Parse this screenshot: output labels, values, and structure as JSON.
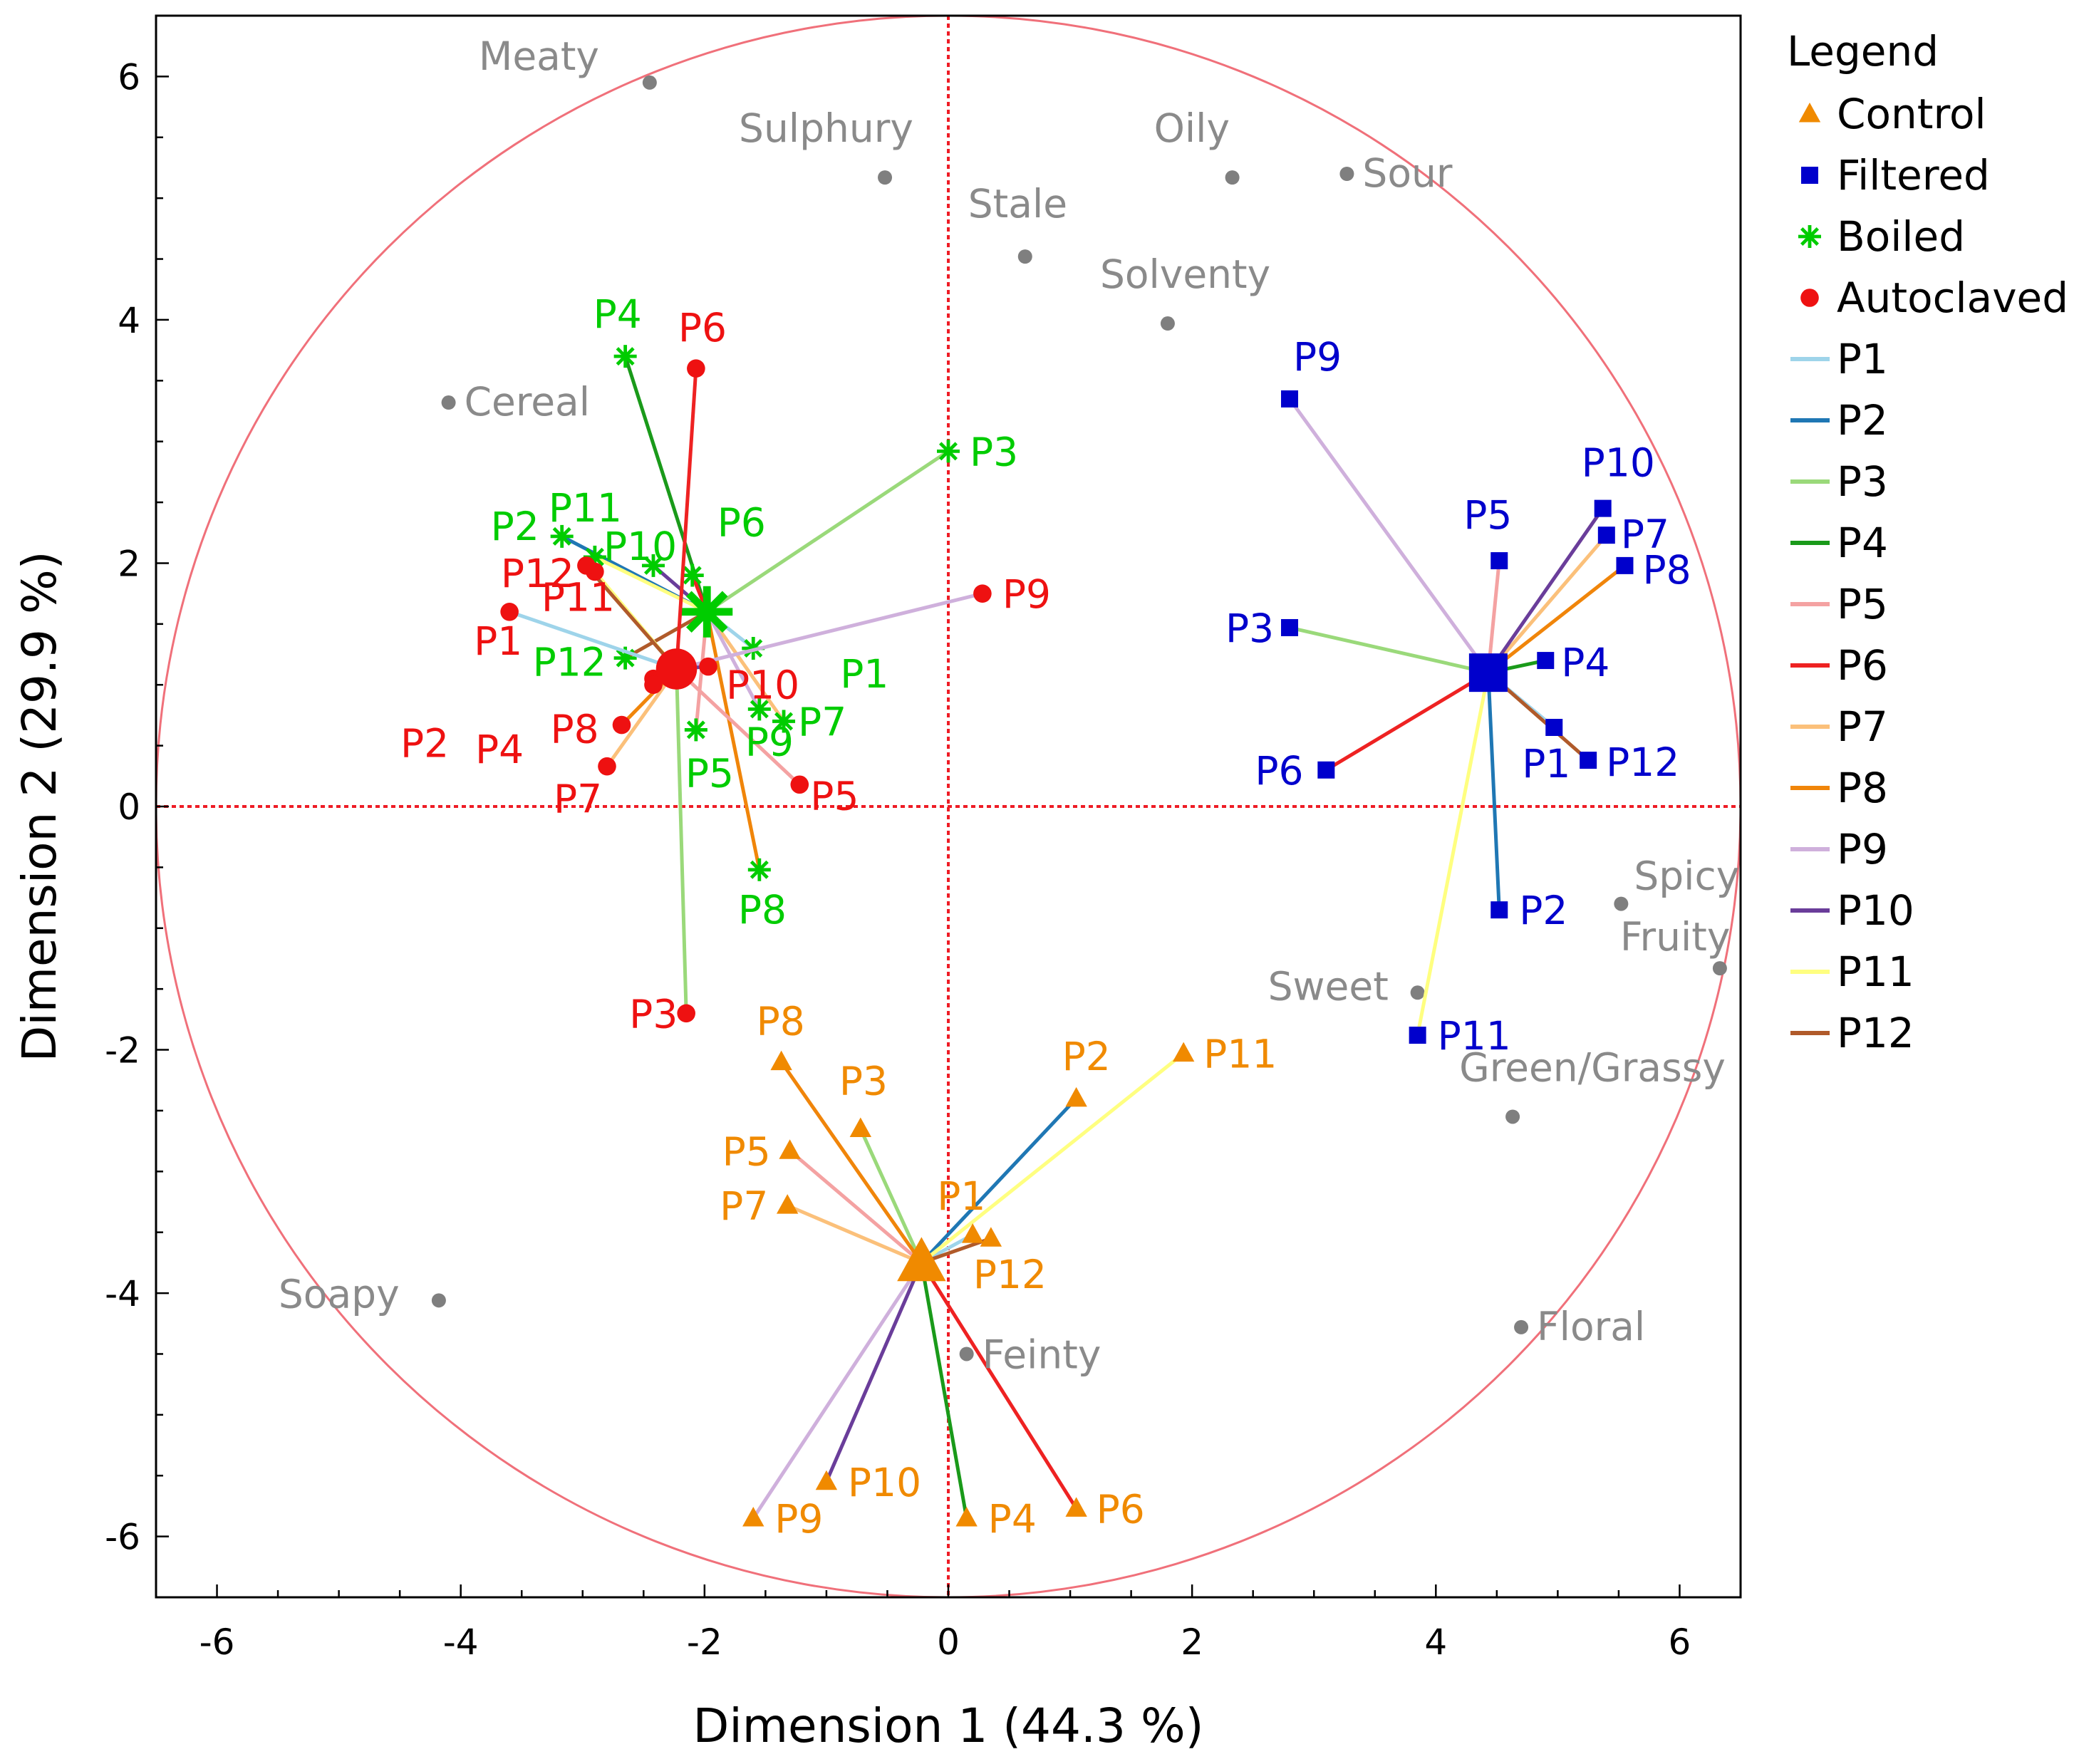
{
  "chart_data": {
    "type": "scatter",
    "xlabel": "Dimension 1  (44.3 %)",
    "ylabel": "Dimension 2  (29.9 %)",
    "xlim": [
      -6.5,
      6.5
    ],
    "ylim": [
      -6.5,
      6.5
    ],
    "xticks": [
      -6,
      -4,
      -2,
      0,
      2,
      4,
      6
    ],
    "yticks": [
      -6,
      -4,
      -2,
      0,
      2,
      4,
      6
    ],
    "reference_lines": {
      "x": 0,
      "y": 0,
      "color": "#ee1c25"
    },
    "circle": {
      "radius": 6.5,
      "color": "#f0707a"
    },
    "legend": {
      "title": "Legend",
      "placement": "right",
      "groups": [
        {
          "label": "Control",
          "marker": "triangle",
          "color": "#f08a00"
        },
        {
          "label": "Filtered",
          "marker": "square",
          "color": "#0000cc"
        },
        {
          "label": "Boiled",
          "marker": "asterisk",
          "color": "#00cc00"
        },
        {
          "label": "Autoclaved",
          "marker": "circle",
          "color": "#ee1111"
        }
      ],
      "panelists": [
        {
          "label": "P1",
          "color": "#9ed4ea"
        },
        {
          "label": "P2",
          "color": "#1f77b4"
        },
        {
          "label": "P3",
          "color": "#9ad97a"
        },
        {
          "label": "P4",
          "color": "#1a9a1a"
        },
        {
          "label": "P5",
          "color": "#f4a2a2"
        },
        {
          "label": "P6",
          "color": "#ee2222"
        },
        {
          "label": "P7",
          "color": "#fbc07a"
        },
        {
          "label": "P8",
          "color": "#f0850a"
        },
        {
          "label": "P9",
          "color": "#cfb0dc"
        },
        {
          "label": "P10",
          "color": "#6a3d9a"
        },
        {
          "label": "P11",
          "color": "#ffff80"
        },
        {
          "label": "P12",
          "color": "#b05a2a"
        }
      ]
    },
    "attributes": [
      {
        "label": "Meaty",
        "x": -2.45,
        "y": 5.95
      },
      {
        "label": "Sulphury",
        "x": -0.52,
        "y": 5.17
      },
      {
        "label": "Stale",
        "x": 0.63,
        "y": 4.52
      },
      {
        "label": "Oily",
        "x": 2.33,
        "y": 5.17
      },
      {
        "label": "Sour",
        "x": 3.27,
        "y": 5.2
      },
      {
        "label": "Solventy",
        "x": 1.8,
        "y": 3.97
      },
      {
        "label": "Cereal",
        "x": -4.1,
        "y": 3.32
      },
      {
        "label": "Spicy",
        "x": 5.52,
        "y": -0.8
      },
      {
        "label": "Fruity",
        "x": 6.33,
        "y": -1.33
      },
      {
        "label": "Sweet",
        "x": 3.85,
        "y": -1.53
      },
      {
        "label": "Green/Grassy",
        "x": 4.63,
        "y": -2.55
      },
      {
        "label": "Soapy",
        "x": -4.18,
        "y": -4.06
      },
      {
        "label": "Floral",
        "x": 4.7,
        "y": -4.28
      },
      {
        "label": "Feinty",
        "x": 0.15,
        "y": -4.5
      }
    ],
    "groups": [
      {
        "name": "Control",
        "center": {
          "x": -0.22,
          "y": -3.75
        },
        "points": [
          {
            "label": "P1",
            "x": 0.2,
            "y": -3.52
          },
          {
            "label": "P2",
            "x": 1.05,
            "y": -2.4
          },
          {
            "label": "P3",
            "x": -0.72,
            "y": -2.65
          },
          {
            "label": "P4",
            "x": 0.15,
            "y": -5.85
          },
          {
            "label": "P5",
            "x": -1.3,
            "y": -2.83
          },
          {
            "label": "P6",
            "x": 1.05,
            "y": -5.77
          },
          {
            "label": "P7",
            "x": -1.32,
            "y": -3.28
          },
          {
            "label": "P8",
            "x": -1.37,
            "y": -2.1
          },
          {
            "label": "P9",
            "x": -1.6,
            "y": -5.85
          },
          {
            "label": "P10",
            "x": -1.0,
            "y": -5.55
          },
          {
            "label": "P11",
            "x": 1.93,
            "y": -2.03
          },
          {
            "label": "P12",
            "x": 0.35,
            "y": -3.55
          }
        ]
      },
      {
        "name": "Filtered",
        "center": {
          "x": 4.43,
          "y": 1.1
        },
        "points": [
          {
            "label": "P1",
            "x": 4.97,
            "y": 0.65
          },
          {
            "label": "P2",
            "x": 4.52,
            "y": -0.85
          },
          {
            "label": "P3",
            "x": 2.8,
            "y": 1.47
          },
          {
            "label": "P4",
            "x": 4.9,
            "y": 1.2
          },
          {
            "label": "P5",
            "x": 4.52,
            "y": 2.02
          },
          {
            "label": "P6",
            "x": 3.1,
            "y": 0.3
          },
          {
            "label": "P7",
            "x": 5.4,
            "y": 2.23
          },
          {
            "label": "P8",
            "x": 5.55,
            "y": 1.98
          },
          {
            "label": "P9",
            "x": 2.8,
            "y": 3.35
          },
          {
            "label": "P10",
            "x": 5.37,
            "y": 2.45
          },
          {
            "label": "P11",
            "x": 3.85,
            "y": -1.88
          },
          {
            "label": "P12",
            "x": 5.25,
            "y": 0.38
          }
        ]
      },
      {
        "name": "Boiled",
        "center": {
          "x": -1.98,
          "y": 1.6
        },
        "points": [
          {
            "label": "P1",
            "x": -1.6,
            "y": 1.3
          },
          {
            "label": "P2",
            "x": -3.17,
            "y": 2.22
          },
          {
            "label": "P3",
            "x": 0.0,
            "y": 2.92
          },
          {
            "label": "P4",
            "x": -2.65,
            "y": 3.7
          },
          {
            "label": "P5",
            "x": -2.07,
            "y": 0.63
          },
          {
            "label": "P6",
            "x": -2.1,
            "y": 1.9
          },
          {
            "label": "P7",
            "x": -1.35,
            "y": 0.7
          },
          {
            "label": "P8",
            "x": -1.55,
            "y": -0.52
          },
          {
            "label": "P9",
            "x": -1.55,
            "y": 0.8
          },
          {
            "label": "P10",
            "x": -2.42,
            "y": 1.98
          },
          {
            "label": "P11",
            "x": -2.9,
            "y": 2.05
          },
          {
            "label": "P12",
            "x": -2.65,
            "y": 1.22
          }
        ]
      },
      {
        "name": "Autoclaved",
        "center": {
          "x": -2.23,
          "y": 1.13
        },
        "points": [
          {
            "label": "P1",
            "x": -3.6,
            "y": 1.6
          },
          {
            "label": "P2",
            "x": -2.42,
            "y": 1.05
          },
          {
            "label": "P3",
            "x": -2.15,
            "y": -1.7
          },
          {
            "label": "P4",
            "x": -2.42,
            "y": 1.0
          },
          {
            "label": "P5",
            "x": -1.22,
            "y": 0.18
          },
          {
            "label": "P6",
            "x": -2.07,
            "y": 3.6
          },
          {
            "label": "P7",
            "x": -2.8,
            "y": 0.33
          },
          {
            "label": "P8",
            "x": -2.68,
            "y": 0.67
          },
          {
            "label": "P9",
            "x": 0.28,
            "y": 1.75
          },
          {
            "label": "P10",
            "x": -1.97,
            "y": 1.15
          },
          {
            "label": "P11",
            "x": -2.9,
            "y": 1.93
          },
          {
            "label": "P12",
            "x": -2.97,
            "y": 1.98
          }
        ]
      }
    ]
  }
}
